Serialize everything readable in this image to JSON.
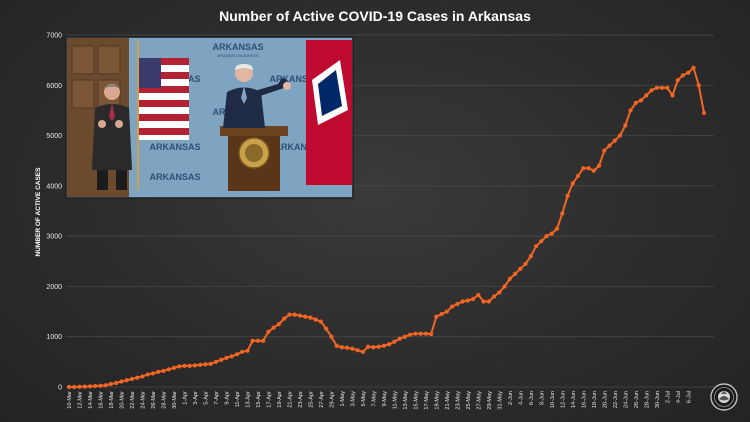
{
  "chart_data": {
    "type": "line",
    "title": "Number of Active COVID-19 Cases in Arkansas",
    "ylabel": "NUMBER OF ACTIVE CASES",
    "xlabel": "",
    "ylim": [
      0,
      7000
    ],
    "yticks": [
      0,
      1000,
      2000,
      3000,
      4000,
      5000,
      6000,
      7000
    ],
    "grid": true,
    "series_color": "#f26522",
    "x_tick_labels": [
      "10-Mar",
      "12-Mar",
      "14-Mar",
      "16-Mar",
      "18-Mar",
      "20-Mar",
      "22-Mar",
      "24-Mar",
      "26-Mar",
      "28-Mar",
      "30-Mar",
      "1-Apr",
      "3-Apr",
      "5-Apr",
      "7-Apr",
      "9-Apr",
      "11-Apr",
      "13-Apr",
      "15-Apr",
      "17-Apr",
      "19-Apr",
      "21-Apr",
      "23-Apr",
      "25-Apr",
      "27-Apr",
      "29-Apr",
      "1-May",
      "3-May",
      "5-May",
      "7-May",
      "9-May",
      "11-May",
      "13-May",
      "15-May",
      "17-May",
      "19-May",
      "21-May",
      "23-May",
      "25-May",
      "27-May",
      "29-May",
      "31-May",
      "2-Jun",
      "4-Jun",
      "6-Jun",
      "8-Jun",
      "10-Jun",
      "12-Jun",
      "14-Jun",
      "16-Jun",
      "18-Jun",
      "20-Jun",
      "22-Jun",
      "24-Jun",
      "26-Jun",
      "28-Jun",
      "30-Jun",
      "2-Jul",
      "4-Jul",
      "6-Jul"
    ],
    "series": [
      {
        "values": [
          0,
          0,
          5,
          8,
          12,
          20,
          25,
          35,
          60,
          80,
          110,
          135,
          160,
          185,
          210,
          250,
          270,
          300,
          320,
          350,
          380,
          410,
          420,
          420,
          430,
          440,
          450,
          460,
          500,
          540,
          580,
          610,
          650,
          700,
          720,
          920,
          920,
          920,
          1100,
          1180,
          1250,
          1360,
          1440,
          1440,
          1420,
          1400,
          1380,
          1340,
          1300,
          1160,
          1000,
          820,
          790,
          780,
          760,
          730,
          700,
          800,
          790,
          800,
          820,
          850,
          900,
          960,
          1000,
          1040,
          1060,
          1060,
          1060,
          1050,
          1400,
          1450,
          1500,
          1600,
          1650,
          1700,
          1720,
          1750,
          1830,
          1700,
          1700,
          1800,
          1880,
          2000,
          2150,
          2250,
          2350,
          2450,
          2600,
          2800,
          2900,
          3000,
          3050,
          3150,
          3450,
          3800,
          4050,
          4200,
          4350,
          4350,
          4300,
          4400,
          4700,
          4800,
          4900,
          5000,
          5200,
          5500,
          5650,
          5700,
          5800,
          5900,
          5950,
          5950,
          5950,
          5800,
          6100,
          6200,
          6250,
          6350,
          6000,
          5450
        ]
      }
    ]
  },
  "inset_photo": {
    "banner_text": "ARKANSAS",
    "banner_subtext": "BRANDED BUSINESS"
  },
  "seal": {
    "label": "Arkansas state seal"
  }
}
